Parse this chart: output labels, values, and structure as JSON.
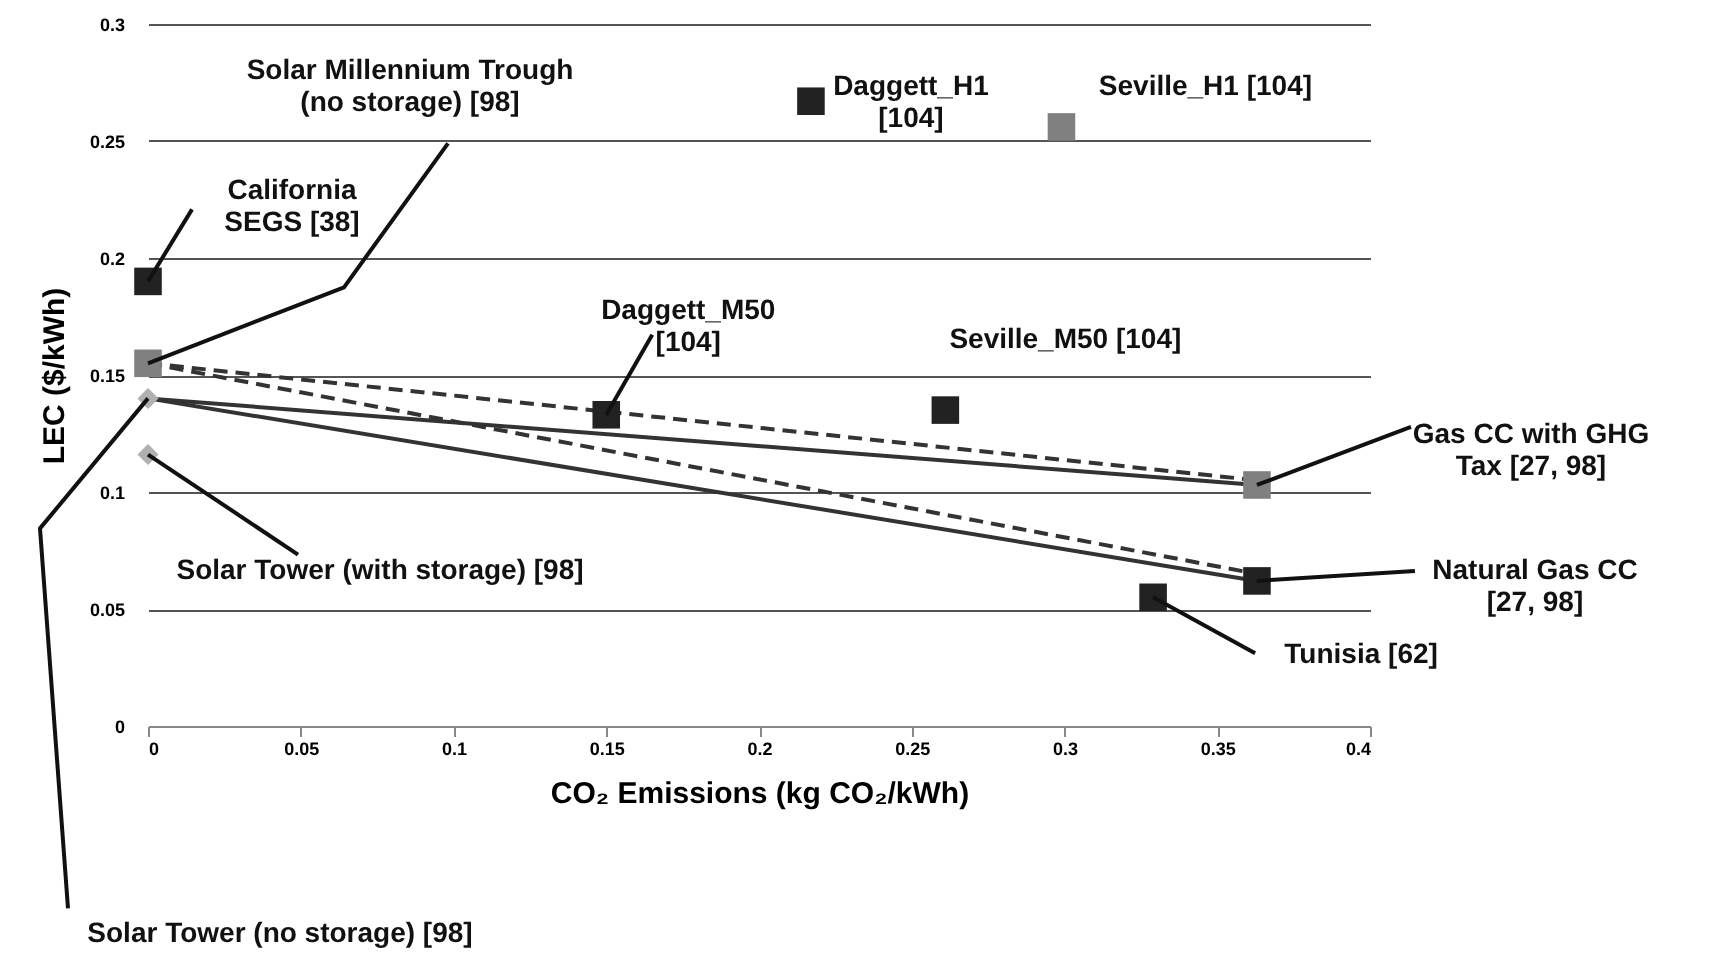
{
  "chart_data": {
    "type": "scatter",
    "xlabel": "CO₂ Emissions  (kg CO₂/kWh)",
    "ylabel": "LEC ($/kWh)",
    "xlim": [
      0,
      0.4
    ],
    "xticks": [
      0,
      0.05,
      0.1,
      0.15,
      0.2,
      0.25,
      0.3,
      0.35,
      0.4
    ],
    "ylim": [
      0,
      0.3
    ],
    "yticks": [
      0,
      0.05,
      0.1,
      0.15,
      0.2,
      0.25,
      0.3
    ],
    "grid": "y",
    "series": [
      {
        "type": "line",
        "color": "#333333",
        "line_style": "solid",
        "marker": "none",
        "x": [
          0,
          0.363
        ],
        "values": [
          0.14,
          0.103
        ]
      },
      {
        "type": "line",
        "color": "#333333",
        "line_style": "solid",
        "marker": "none",
        "x": [
          0,
          0.363
        ],
        "values": [
          0.14,
          0.062
        ]
      },
      {
        "type": "line",
        "color": "#333333",
        "line_style": "dashed",
        "marker": "none",
        "x": [
          0,
          0.363
        ],
        "values": [
          0.155,
          0.105
        ]
      },
      {
        "type": "line",
        "color": "#333333",
        "line_style": "dashed",
        "marker": "none",
        "x": [
          0,
          0.363
        ],
        "values": [
          0.155,
          0.065
        ]
      },
      {
        "marker": "square",
        "color": "#222222",
        "x": [
          0,
          0.15,
          0.217,
          0.261,
          0.329,
          0.363
        ],
        "values": [
          0.19,
          0.133,
          0.267,
          0.135,
          0.055,
          0.062
        ]
      },
      {
        "marker": "square",
        "color": "#808080",
        "x": [
          0,
          0.299,
          0.363
        ],
        "values": [
          0.155,
          0.256,
          0.103
        ]
      },
      {
        "marker": "diamond",
        "color": "#b0b0b0",
        "x": [
          0,
          0
        ],
        "values": [
          0.14,
          0.116
        ]
      }
    ],
    "annotations": [
      {
        "text": "California\nSEGS [38]",
        "x": 0,
        "y": 0.19
      },
      {
        "text": "Solar Millennium Trough\n(no storage) [98]",
        "x": 0,
        "y": 0.155
      },
      {
        "text": "Solar Tower (no storage) [98]",
        "x": 0,
        "y": 0.14
      },
      {
        "text": "Solar Tower (with storage) [98]",
        "x": 0,
        "y": 0.116
      },
      {
        "text": "Daggett_M50\n[104]",
        "x": 0.15,
        "y": 0.133
      },
      {
        "text": "Daggett_H1\n[104]",
        "x": 0.217,
        "y": 0.267
      },
      {
        "text": "Seville_H1 [104]",
        "x": 0.299,
        "y": 0.256
      },
      {
        "text": "Seville_M50 [104]",
        "x": 0.261,
        "y": 0.135
      },
      {
        "text": "Gas CC with GHG\nTax [27, 98]",
        "x": 0.363,
        "y": 0.103
      },
      {
        "text": "Natural Gas CC\n[27, 98]",
        "x": 0.363,
        "y": 0.062
      },
      {
        "text": "Tunisia [62]",
        "x": 0.329,
        "y": 0.055
      }
    ]
  }
}
